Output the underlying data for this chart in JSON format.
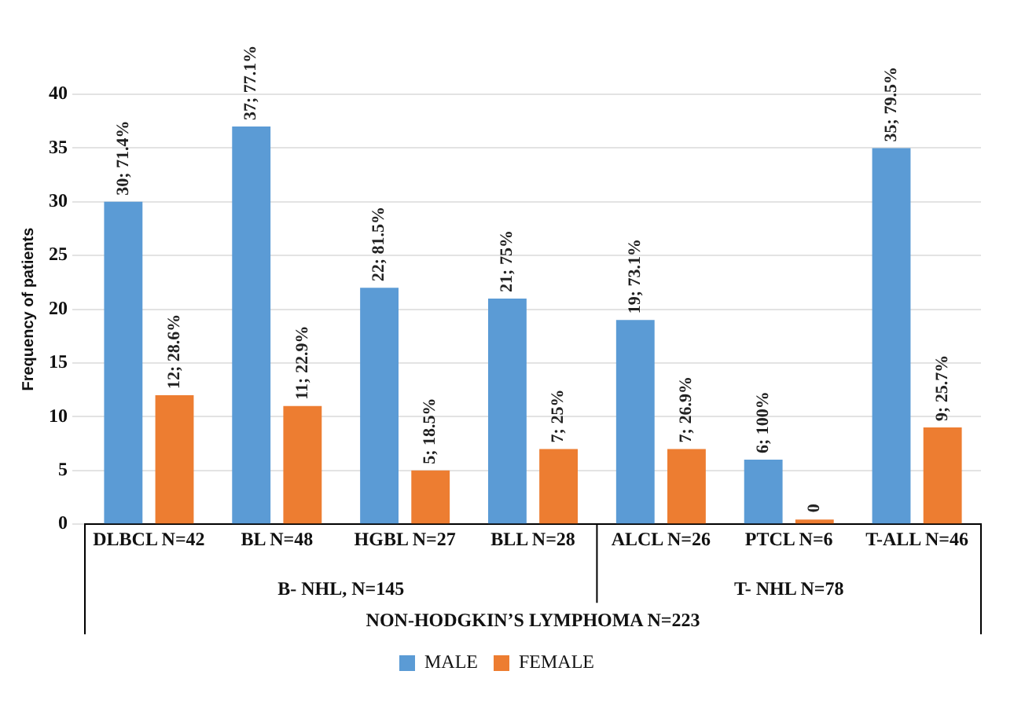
{
  "chart_data": {
    "type": "bar",
    "ylabel": "Frequency of patients",
    "categories": [
      "DLBCL N=42",
      "BL N=48",
      "HGBL N=27",
      "BLL N=28",
      "ALCL N=26",
      "PTCL N=6",
      "T-ALL N=46"
    ],
    "series": [
      {
        "name": "MALE",
        "color": "#5b9bd5",
        "values": [
          30,
          37,
          22,
          21,
          19,
          6,
          35
        ],
        "value_labels": [
          "30; 71.4%",
          "37; 77.1%",
          "22; 81.5%",
          "21; 75%",
          "19; 73.1%",
          "6; 100%",
          "35; 79.5%"
        ]
      },
      {
        "name": "FEMALE",
        "color": "#ed7d31",
        "values": [
          12,
          11,
          5,
          7,
          7,
          0,
          9
        ],
        "value_labels": [
          "12; 28.6%",
          "11; 22.9%",
          "5; 18.5%",
          "7; 25%",
          "7; 26.9%",
          "0",
          "9; 25.7%"
        ]
      }
    ],
    "ylim": [
      0,
      40
    ],
    "yticks": [
      0,
      5,
      10,
      15,
      20,
      25,
      30,
      35,
      40
    ],
    "grid": "y",
    "legend": "bottom",
    "annotations": [
      "B- NHL, N=145",
      "T- NHL N=78",
      "NON-HODGKIN’S LYMPHOMA N=223"
    ]
  }
}
